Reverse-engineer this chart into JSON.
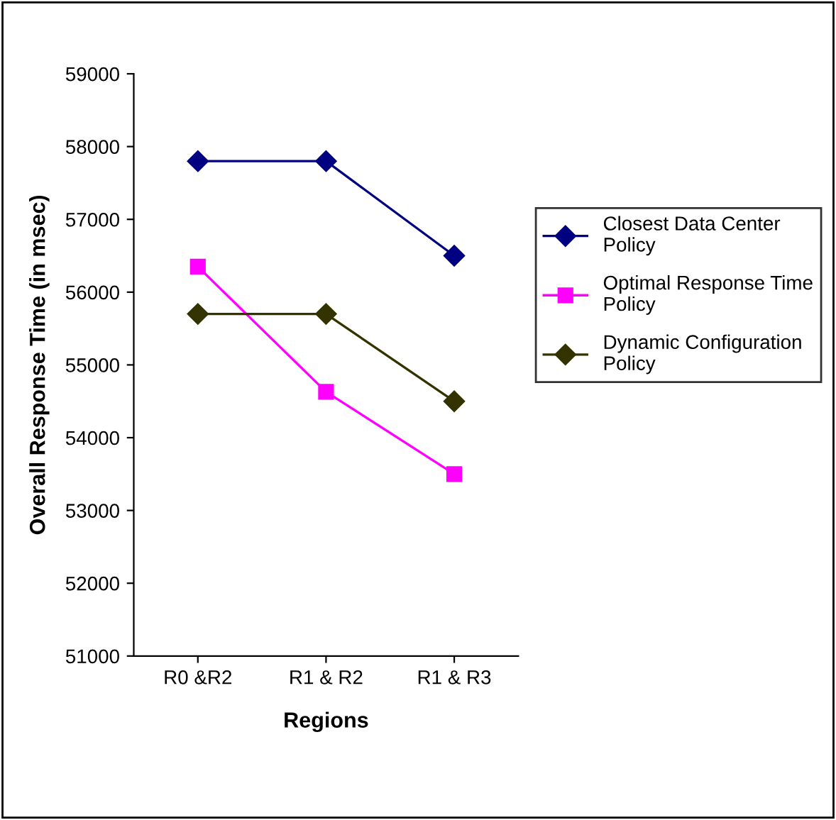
{
  "chart_data": {
    "type": "line",
    "xlabel": "Regions",
    "ylabel": "Overall Response Time (in msec)",
    "categories": [
      "R0 &R2",
      "R1 & R2",
      "R1 & R3"
    ],
    "series": [
      {
        "name": "Closest Data Center Policy",
        "color": "#000080",
        "marker": "diamond",
        "values": [
          57800,
          57800,
          56500
        ]
      },
      {
        "name": "Optimal Response Time Policy",
        "color": "#ff00ff",
        "marker": "square",
        "values": [
          56350,
          54630,
          53500
        ]
      },
      {
        "name": "Dynamic Configuration Policy",
        "color": "#333300",
        "marker": "diamond",
        "values": [
          55700,
          55700,
          54500
        ]
      }
    ],
    "ylim": [
      51000,
      59000
    ],
    "yticks": [
      51000,
      52000,
      53000,
      54000,
      55000,
      56000,
      57000,
      58000,
      59000
    ],
    "grid": false,
    "legend": "right",
    "line_style": "solid"
  }
}
